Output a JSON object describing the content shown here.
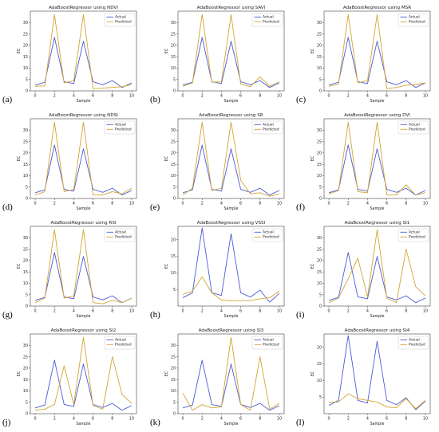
{
  "colors": {
    "actual": "#4c5ad6",
    "predicted": "#d2a530",
    "axis": "#444444",
    "legend_border": "#cccccc"
  },
  "chart_data": [
    {
      "type": "line",
      "letter": "(a)",
      "title": "AdaBoostRegressor using NDVI",
      "xlabel": "Sample",
      "ylabel": "EC",
      "xlim": [
        -0.5,
        10.5
      ],
      "ylim": [
        0,
        35
      ],
      "xticks": [
        0,
        2,
        4,
        6,
        8,
        10
      ],
      "yticks": [
        0,
        5,
        10,
        15,
        20,
        25,
        30
      ],
      "legend": "top-right",
      "x": [
        0,
        1,
        2,
        3,
        4,
        5,
        6,
        7,
        8,
        9,
        10
      ],
      "series": [
        {
          "name": "Actual",
          "values": [
            2.5,
            3.8,
            23.5,
            4.0,
            3.2,
            21.8,
            4.0,
            2.7,
            4.5,
            1.5,
            3.5
          ]
        },
        {
          "name": "Predicted",
          "values": [
            2.0,
            2.2,
            33.5,
            3.5,
            4.5,
            33.5,
            1.0,
            1.2,
            1.5,
            1.8,
            2.8
          ]
        }
      ]
    },
    {
      "type": "line",
      "letter": "(b)",
      "title": "AdaBoostRegressor using SAVI",
      "xlabel": "Sample",
      "ylabel": "EC",
      "xlim": [
        -0.5,
        10.5
      ],
      "ylim": [
        0,
        35
      ],
      "xticks": [
        0,
        2,
        4,
        6,
        8,
        10
      ],
      "yticks": [
        0,
        5,
        10,
        15,
        20,
        25,
        30
      ],
      "legend": "top-right",
      "x": [
        0,
        1,
        2,
        3,
        4,
        5,
        6,
        7,
        8,
        9,
        10
      ],
      "series": [
        {
          "name": "Actual",
          "values": [
            2.5,
            3.8,
            23.5,
            4.0,
            3.2,
            21.8,
            4.0,
            2.7,
            4.5,
            1.5,
            3.5
          ]
        },
        {
          "name": "Predicted",
          "values": [
            2.0,
            3.5,
            33.5,
            3.8,
            4.0,
            33.5,
            3.0,
            1.8,
            6.2,
            2.0,
            4.0
          ]
        }
      ]
    },
    {
      "type": "line",
      "letter": "(c)",
      "title": "AdaBoostRegressor using MSR",
      "xlabel": "Sample",
      "ylabel": "EC",
      "xlim": [
        -0.5,
        10.5
      ],
      "ylim": [
        0,
        35
      ],
      "xticks": [
        0,
        2,
        4,
        6,
        8,
        10
      ],
      "yticks": [
        0,
        5,
        10,
        15,
        20,
        25,
        30
      ],
      "legend": "top-right",
      "x": [
        0,
        1,
        2,
        3,
        4,
        5,
        6,
        7,
        8,
        9,
        10
      ],
      "series": [
        {
          "name": "Actual",
          "values": [
            2.5,
            3.8,
            23.5,
            4.0,
            3.2,
            21.8,
            4.0,
            2.7,
            4.5,
            1.5,
            3.5
          ]
        },
        {
          "name": "Predicted",
          "values": [
            2.0,
            3.0,
            33.5,
            3.5,
            4.5,
            33.5,
            1.0,
            1.5,
            2.5,
            2.8,
            3.5
          ]
        }
      ]
    },
    {
      "type": "line",
      "letter": "(d)",
      "title": "AdaBoostRegressor using NDSI",
      "xlabel": "Sample",
      "ylabel": "EC",
      "xlim": [
        -0.5,
        10.5
      ],
      "ylim": [
        0,
        35
      ],
      "xticks": [
        0,
        2,
        4,
        6,
        8,
        10
      ],
      "yticks": [
        0,
        5,
        10,
        15,
        20,
        25,
        30
      ],
      "legend": "top-right",
      "x": [
        0,
        1,
        2,
        3,
        4,
        5,
        6,
        7,
        8,
        9,
        10
      ],
      "series": [
        {
          "name": "Actual",
          "values": [
            2.5,
            3.8,
            23.5,
            4.0,
            3.2,
            21.8,
            4.0,
            2.7,
            4.5,
            1.5,
            3.5
          ]
        },
        {
          "name": "Predicted",
          "values": [
            1.5,
            3.0,
            33.5,
            3.0,
            4.0,
            33.5,
            1.5,
            1.5,
            3.0,
            2.0,
            4.5
          ]
        }
      ]
    },
    {
      "type": "line",
      "letter": "(e)",
      "title": "AdaBoostRegressor using SR",
      "xlabel": "Sample",
      "ylabel": "EC",
      "xlim": [
        -0.5,
        10.5
      ],
      "ylim": [
        0,
        35
      ],
      "xticks": [
        0,
        2,
        4,
        6,
        8,
        10
      ],
      "yticks": [
        0,
        5,
        10,
        15,
        20,
        25,
        30
      ],
      "legend": "top-right",
      "x": [
        0,
        1,
        2,
        3,
        4,
        5,
        6,
        7,
        8,
        9,
        10
      ],
      "series": [
        {
          "name": "Actual",
          "values": [
            2.5,
            3.8,
            23.5,
            4.0,
            3.2,
            21.8,
            4.0,
            2.7,
            4.5,
            1.5,
            3.5
          ]
        },
        {
          "name": "Predicted",
          "values": [
            1.5,
            4.5,
            33.5,
            3.5,
            4.5,
            33.5,
            8.0,
            2.0,
            2.5,
            1.0,
            2.0
          ]
        }
      ]
    },
    {
      "type": "line",
      "letter": "(f)",
      "title": "AdaBoostRegressor using DVI",
      "xlabel": "Sample",
      "ylabel": "EC",
      "xlim": [
        -0.5,
        10.5
      ],
      "ylim": [
        0,
        35
      ],
      "xticks": [
        0,
        2,
        4,
        6,
        8,
        10
      ],
      "yticks": [
        0,
        5,
        10,
        15,
        20,
        25,
        30
      ],
      "legend": "top-right",
      "x": [
        0,
        1,
        2,
        3,
        4,
        5,
        6,
        7,
        8,
        9,
        10
      ],
      "series": [
        {
          "name": "Actual",
          "values": [
            2.5,
            3.8,
            23.5,
            4.0,
            3.2,
            21.8,
            4.0,
            2.7,
            4.5,
            1.5,
            3.5
          ]
        },
        {
          "name": "Predicted",
          "values": [
            2.0,
            3.5,
            33.5,
            3.0,
            2.5,
            33.5,
            1.5,
            1.5,
            6.0,
            1.5,
            2.5
          ]
        }
      ]
    },
    {
      "type": "line",
      "letter": "(g)",
      "title": "AdaBoostRegressor using RSI",
      "xlabel": "Sample",
      "ylabel": "EC",
      "xlim": [
        -0.5,
        10.5
      ],
      "ylim": [
        0,
        35
      ],
      "xticks": [
        0,
        2,
        4,
        6,
        8,
        10
      ],
      "yticks": [
        0,
        5,
        10,
        15,
        20,
        25,
        30
      ],
      "legend": "top-right",
      "x": [
        0,
        1,
        2,
        3,
        4,
        5,
        6,
        7,
        8,
        9,
        10
      ],
      "series": [
        {
          "name": "Actual",
          "values": [
            2.5,
            3.8,
            23.5,
            4.0,
            3.2,
            21.8,
            4.0,
            2.7,
            4.5,
            1.5,
            3.5
          ]
        },
        {
          "name": "Predicted",
          "values": [
            1.5,
            3.5,
            33.5,
            3.5,
            4.5,
            33.5,
            1.5,
            1.0,
            2.5,
            1.5,
            3.5
          ]
        }
      ]
    },
    {
      "type": "line",
      "letter": "(h)",
      "title": "AdaBoostRegressor using VSSI",
      "xlabel": "Sample",
      "ylabel": "EC",
      "xlim": [
        -0.5,
        10.5
      ],
      "ylim": [
        0,
        24
      ],
      "xticks": [
        0,
        2,
        4,
        6,
        8,
        10
      ],
      "yticks": [
        5,
        10,
        15,
        20
      ],
      "legend": "top-right",
      "x": [
        0,
        1,
        2,
        3,
        4,
        5,
        6,
        7,
        8,
        9,
        10
      ],
      "series": [
        {
          "name": "Actual",
          "values": [
            2.5,
            4.0,
            23.5,
            4.0,
            3.2,
            21.8,
            4.0,
            2.7,
            4.8,
            1.2,
            3.8
          ]
        },
        {
          "name": "Predicted",
          "values": [
            3.5,
            4.5,
            8.8,
            4.0,
            1.8,
            1.6,
            1.6,
            1.7,
            2.2,
            2.5,
            4.5
          ]
        }
      ]
    },
    {
      "type": "line",
      "letter": "(i)",
      "title": "AdaBoostRegressor using SI1",
      "xlabel": "Sample",
      "ylabel": "EC",
      "xlim": [
        -0.5,
        10.5
      ],
      "ylim": [
        0,
        35
      ],
      "xticks": [
        0,
        2,
        4,
        6,
        8,
        10
      ],
      "yticks": [
        0,
        5,
        10,
        15,
        20,
        25,
        30
      ],
      "legend": "top-right",
      "x": [
        0,
        1,
        2,
        3,
        4,
        5,
        6,
        7,
        8,
        9,
        10
      ],
      "series": [
        {
          "name": "Actual",
          "values": [
            2.5,
            3.8,
            23.5,
            4.0,
            3.2,
            21.8,
            4.0,
            2.7,
            4.5,
            1.5,
            3.5
          ]
        },
        {
          "name": "Predicted",
          "values": [
            1.5,
            3.5,
            12.0,
            21.0,
            4.0,
            33.5,
            3.5,
            1.5,
            25.0,
            8.5,
            4.5
          ]
        }
      ]
    },
    {
      "type": "line",
      "letter": "(j)",
      "title": "AdaBoostRegressor using SI2",
      "xlabel": "Sample",
      "ylabel": "EC",
      "xlim": [
        -0.5,
        10.5
      ],
      "ylim": [
        0,
        35
      ],
      "xticks": [
        0,
        2,
        4,
        6,
        8,
        10
      ],
      "yticks": [
        0,
        5,
        10,
        15,
        20,
        25,
        30
      ],
      "legend": "top-right",
      "x": [
        0,
        1,
        2,
        3,
        4,
        5,
        6,
        7,
        8,
        9,
        10
      ],
      "series": [
        {
          "name": "Actual",
          "values": [
            2.5,
            3.8,
            23.5,
            4.0,
            3.2,
            21.8,
            4.0,
            2.7,
            4.5,
            1.5,
            3.5
          ]
        },
        {
          "name": "Predicted",
          "values": [
            1.5,
            2.0,
            4.0,
            21.0,
            4.0,
            33.5,
            3.5,
            2.0,
            25.0,
            8.5,
            4.5
          ]
        }
      ]
    },
    {
      "type": "line",
      "letter": "(k)",
      "title": "AdaBoostRegressor using SI3",
      "xlabel": "Sample",
      "ylabel": "EC",
      "xlim": [
        -0.5,
        10.5
      ],
      "ylim": [
        0,
        35
      ],
      "xticks": [
        0,
        2,
        4,
        6,
        8,
        10
      ],
      "yticks": [
        0,
        5,
        10,
        15,
        20,
        25,
        30
      ],
      "legend": "top-right",
      "x": [
        0,
        1,
        2,
        3,
        4,
        5,
        6,
        7,
        8,
        9,
        10
      ],
      "series": [
        {
          "name": "Actual",
          "values": [
            2.5,
            3.8,
            23.5,
            4.0,
            3.2,
            21.8,
            4.0,
            2.7,
            4.5,
            1.5,
            3.5
          ]
        },
        {
          "name": "Predicted",
          "values": [
            9.0,
            1.5,
            4.0,
            2.5,
            3.0,
            33.5,
            4.0,
            1.5,
            25.0,
            2.0,
            4.5
          ]
        }
      ]
    },
    {
      "type": "line",
      "letter": "(l)",
      "title": "AdaBoostRegressor using SI4",
      "xlabel": "Sample",
      "ylabel": "EC",
      "xlim": [
        -0.5,
        10.5
      ],
      "ylim": [
        0,
        24
      ],
      "xticks": [
        0,
        2,
        4,
        6,
        8,
        10
      ],
      "yticks": [
        5,
        10,
        15,
        20
      ],
      "legend": "top-right",
      "x": [
        0,
        1,
        2,
        3,
        4,
        5,
        6,
        7,
        8,
        9,
        10
      ],
      "series": [
        {
          "name": "Actual",
          "values": [
            2.5,
            4.0,
            23.5,
            4.0,
            3.2,
            21.8,
            4.0,
            2.7,
            4.8,
            1.2,
            3.8
          ]
        },
        {
          "name": "Predicted",
          "values": [
            3.5,
            3.5,
            6.0,
            4.5,
            4.0,
            3.5,
            2.0,
            1.8,
            4.5,
            1.5,
            4.0
          ]
        }
      ]
    }
  ]
}
